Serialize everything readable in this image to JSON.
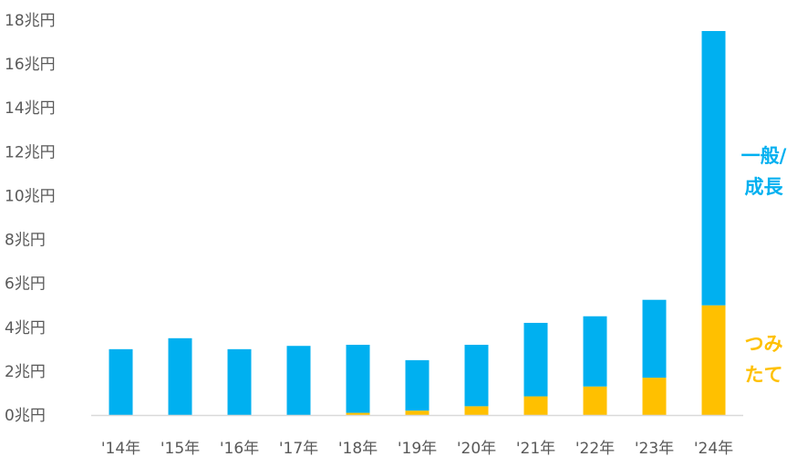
{
  "chart_data": {
    "type": "bar",
    "stacked": true,
    "categories": [
      "'14年",
      "'15年",
      "'16年",
      "'17年",
      "'18年",
      "'19年",
      "'20年",
      "'21年",
      "'22年",
      "'23年",
      "'24年"
    ],
    "series": [
      {
        "name": "つみたて",
        "legend_lines": [
          "つみ",
          "たて"
        ],
        "color": "#FFC000",
        "values": [
          0,
          0,
          0,
          0,
          0.1,
          0.2,
          0.4,
          0.85,
          1.3,
          1.7,
          5.0
        ]
      },
      {
        "name": "一般/成長",
        "legend_lines": [
          "一般/",
          "成長"
        ],
        "color": "#00B0F0",
        "values": [
          3.0,
          3.5,
          3.0,
          3.15,
          3.1,
          2.3,
          2.8,
          3.35,
          3.2,
          3.55,
          12.5
        ]
      }
    ],
    "ylim": [
      0,
      18
    ],
    "yticks": [
      0,
      2,
      4,
      6,
      8,
      10,
      12,
      14,
      16,
      18
    ],
    "ytick_suffix": "兆円",
    "yticks_labels": [
      "0兆円",
      "2兆円",
      "4兆円",
      "6兆円",
      "8兆円",
      "10兆円",
      "12兆円",
      "14兆円",
      "16兆円",
      "18兆円"
    ],
    "title": "",
    "xlabel": "",
    "ylabel": "",
    "grid": false,
    "legend_placement": "right, labels beside last bar"
  }
}
